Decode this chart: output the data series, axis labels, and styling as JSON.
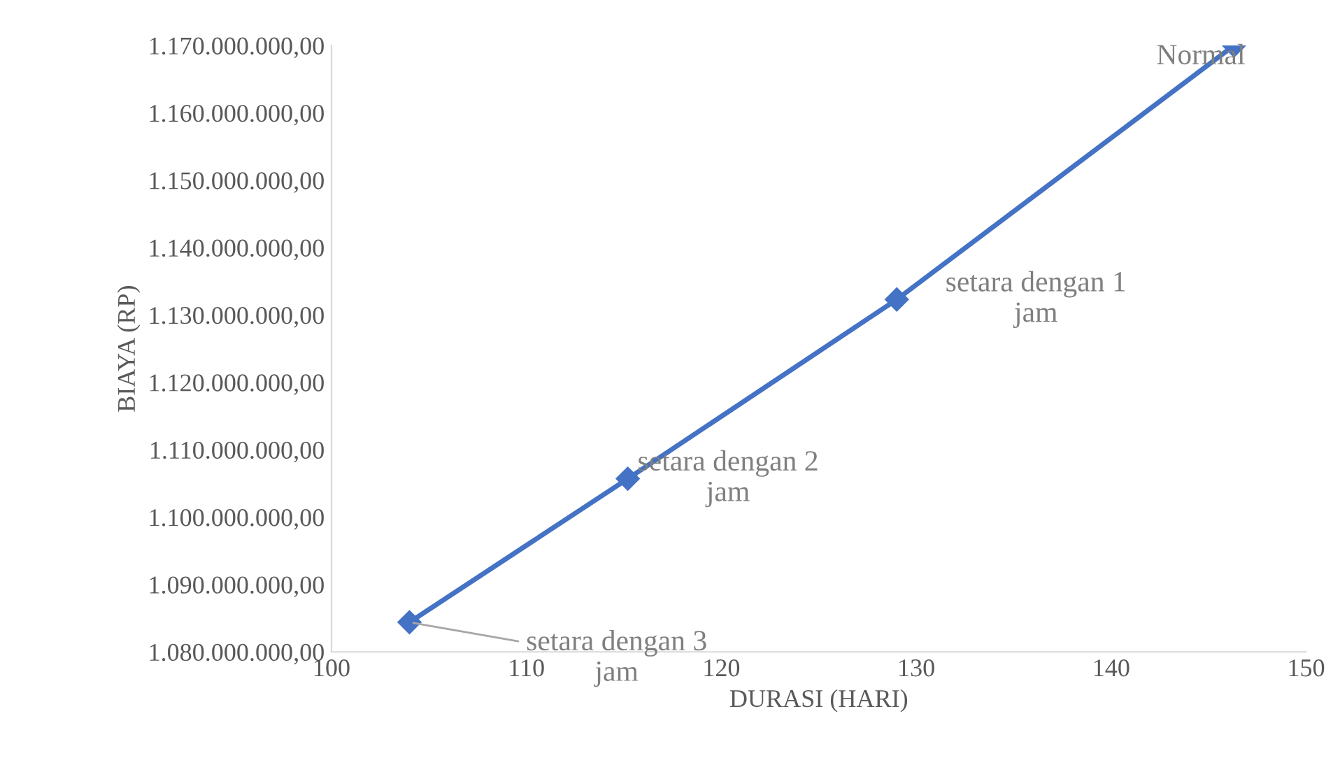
{
  "chart_data": {
    "type": "line",
    "xlabel": "DURASI (HARI)",
    "ylabel": "BIAYA (RP)",
    "x": [
      104,
      115.2,
      129,
      146.3
    ],
    "series": [
      {
        "color": "#4472c4",
        "values": [
          1084400000,
          1105700000,
          1132300000,
          1170000000
        ]
      }
    ],
    "xlim": [
      100,
      150
    ],
    "xticks": [
      100,
      110,
      120,
      130,
      140,
      150
    ],
    "ylim": [
      1080000000,
      1170000000
    ],
    "yticks": [
      {
        "value": 1080000000,
        "label": "1.080.000.000,00"
      },
      {
        "value": 1090000000,
        "label": "1.090.000.000,00"
      },
      {
        "value": 1100000000,
        "label": "1.100.000.000,00"
      },
      {
        "value": 1110000000,
        "label": "1.110.000.000,00"
      },
      {
        "value": 1120000000,
        "label": "1.120.000.000,00"
      },
      {
        "value": 1130000000,
        "label": "1.130.000.000,00"
      },
      {
        "value": 1140000000,
        "label": "1.140.000.000,00"
      },
      {
        "value": 1150000000,
        "label": "1.150.000.000,00"
      },
      {
        "value": 1160000000,
        "label": "1.160.000.000,00"
      },
      {
        "value": 1170000000,
        "label": "1.170.000.000,00"
      }
    ],
    "annotations": [
      {
        "text": "setara dengan 3\njam",
        "x": 104,
        "y": 1084400000
      },
      {
        "text": "setara dengan 2\njam",
        "x": 115.2,
        "y": 1105700000
      },
      {
        "text": "setara dengan 1\njam",
        "x": 129,
        "y": 1132300000
      },
      {
        "text": "Normal",
        "x": 146.3,
        "y": 1170000000
      }
    ],
    "grid": false,
    "legend": false,
    "marker": "diamond",
    "line_style": "solid"
  }
}
